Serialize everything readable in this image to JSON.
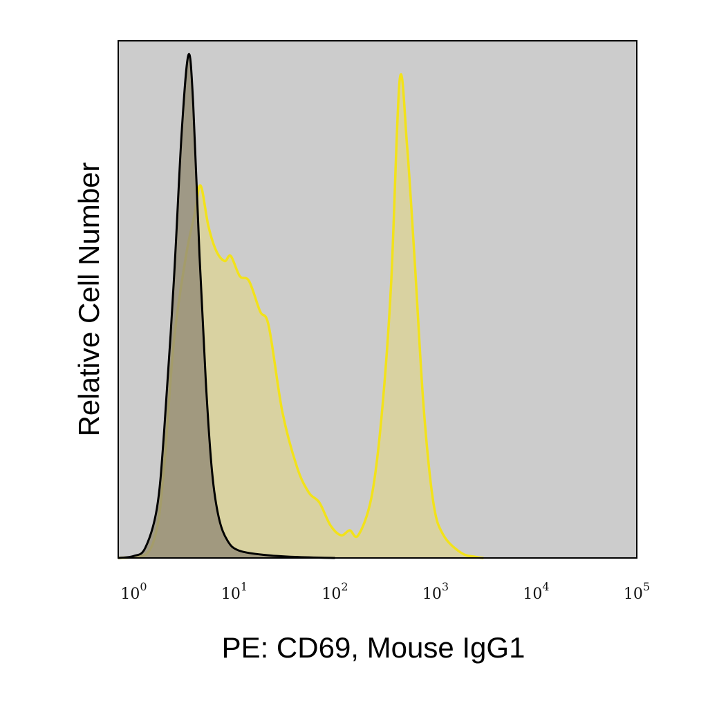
{
  "chart_data": {
    "type": "area",
    "title": "",
    "xlabel": "PE: CD69, Mouse IgG1",
    "ylabel": "Relative Cell Number",
    "x_scale": "log",
    "xlim": [
      0.7,
      100000
    ],
    "ylim": [
      0,
      1.0
    ],
    "x_ticks": [
      {
        "value": 1,
        "base": "10",
        "exp": "0"
      },
      {
        "value": 10,
        "base": "10",
        "exp": "1"
      },
      {
        "value": 100,
        "base": "10",
        "exp": "2"
      },
      {
        "value": 1000,
        "base": "10",
        "exp": "3"
      },
      {
        "value": 10000,
        "base": "10",
        "exp": "4"
      },
      {
        "value": 100000,
        "base": "10",
        "exp": "5"
      }
    ],
    "y_ticks_shown": false,
    "grid": false,
    "legend": "none",
    "background_color": "#cccccc",
    "series": [
      {
        "fill": "#d9d2a1",
        "stroke": "#f2e21a",
        "points": [
          [
            0.7,
            0.0
          ],
          [
            1.3,
            0.006
          ],
          [
            1.7,
            0.06
          ],
          [
            2.0,
            0.18
          ],
          [
            2.5,
            0.43
          ],
          [
            3.3,
            0.6
          ],
          [
            4.0,
            0.68
          ],
          [
            4.6,
            0.74
          ],
          [
            5.5,
            0.66
          ],
          [
            6.6,
            0.61
          ],
          [
            8.0,
            0.59
          ],
          [
            9.2,
            0.6
          ],
          [
            11.3,
            0.56
          ],
          [
            14.0,
            0.55
          ],
          [
            18.0,
            0.49
          ],
          [
            22.0,
            0.46
          ],
          [
            30.0,
            0.29
          ],
          [
            42.0,
            0.18
          ],
          [
            55.0,
            0.13
          ],
          [
            70.0,
            0.11
          ],
          [
            90.0,
            0.065
          ],
          [
            115.0,
            0.045
          ],
          [
            140.0,
            0.055
          ],
          [
            170.0,
            0.045
          ],
          [
            230.0,
            0.12
          ],
          [
            290.0,
            0.28
          ],
          [
            360.0,
            0.54
          ],
          [
            440.0,
            0.95
          ],
          [
            520.0,
            0.82
          ],
          [
            620.0,
            0.59
          ],
          [
            760.0,
            0.3
          ],
          [
            950.0,
            0.11
          ],
          [
            1200.0,
            0.045
          ],
          [
            1800.0,
            0.01
          ],
          [
            2500.0,
            0.002
          ],
          [
            3000.0,
            0.0
          ]
        ]
      },
      {
        "fill": "#978f79",
        "stroke": "#000000",
        "points": [
          [
            0.7,
            0.0
          ],
          [
            1.0,
            0.004
          ],
          [
            1.3,
            0.02
          ],
          [
            1.7,
            0.1
          ],
          [
            2.0,
            0.25
          ],
          [
            2.5,
            0.55
          ],
          [
            3.0,
            0.85
          ],
          [
            3.5,
            1.0
          ],
          [
            3.9,
            0.9
          ],
          [
            4.5,
            0.6
          ],
          [
            5.2,
            0.35
          ],
          [
            6.0,
            0.17
          ],
          [
            7.0,
            0.08
          ],
          [
            8.5,
            0.035
          ],
          [
            11.0,
            0.015
          ],
          [
            20.0,
            0.006
          ],
          [
            40.0,
            0.002
          ],
          [
            100.0,
            0.0
          ]
        ]
      }
    ]
  }
}
